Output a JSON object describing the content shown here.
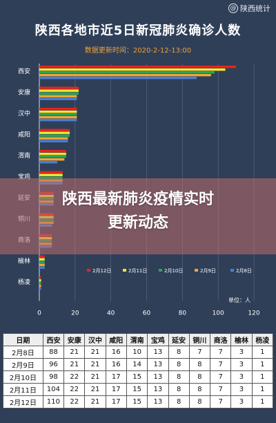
{
  "watermark": {
    "brand": "陕西统计",
    "icon": "weibo-at-icon"
  },
  "header": {
    "title": "陕西各地市近5日新冠肺炎确诊人数",
    "subtitle": "数据更新时间：2020-2-12-13:00"
  },
  "banner": {
    "line1": "陕西最新肺炎疫情实时",
    "line2": "更新动态"
  },
  "chart_data": {
    "type": "bar",
    "orientation": "horizontal",
    "title": "陕西各地市近5日新冠肺炎确诊人数",
    "unit_label": "单位：人",
    "xlim": [
      0,
      120
    ],
    "x_ticks": [
      0,
      20,
      40,
      60,
      80,
      100,
      120
    ],
    "categories": [
      "西安",
      "安康",
      "汉中",
      "咸阳",
      "渭南",
      "宝鸡",
      "延安",
      "铜川",
      "商洛",
      "榆林",
      "杨凌"
    ],
    "series": [
      {
        "name": "2月12日",
        "color": "#e8231f",
        "values": [
          110,
          22,
          21,
          17,
          15,
          13,
          8,
          8,
          7,
          3,
          1
        ]
      },
      {
        "name": "2月11日",
        "color": "#f3e82b",
        "values": [
          104,
          22,
          21,
          17,
          15,
          13,
          8,
          8,
          7,
          3,
          1
        ]
      },
      {
        "name": "2月10日",
        "color": "#2aa55a",
        "values": [
          98,
          22,
          21,
          17,
          15,
          13,
          8,
          8,
          7,
          3,
          1
        ]
      },
      {
        "name": "2月9日",
        "color": "#f2a731",
        "values": [
          96,
          21,
          21,
          16,
          14,
          13,
          8,
          8,
          7,
          3,
          1
        ]
      },
      {
        "name": "2月8日",
        "color": "#4a7fd6",
        "values": [
          88,
          21,
          21,
          16,
          10,
          13,
          8,
          7,
          7,
          3,
          1
        ]
      }
    ],
    "legend_position": "bottom-right",
    "grid": true
  },
  "table": {
    "headers": [
      "日期",
      "西安",
      "安康",
      "汉中",
      "咸阳",
      "渭南",
      "宝鸡",
      "延安",
      "铜川",
      "商洛",
      "榆林",
      "杨凌"
    ],
    "rows": [
      [
        "2月8日",
        "88",
        "21",
        "21",
        "16",
        "10",
        "13",
        "8",
        "7",
        "7",
        "3",
        "1"
      ],
      [
        "2月9日",
        "96",
        "21",
        "21",
        "16",
        "14",
        "13",
        "8",
        "8",
        "7",
        "3",
        "1"
      ],
      [
        "2月10日",
        "98",
        "22",
        "21",
        "17",
        "15",
        "13",
        "8",
        "8",
        "7",
        "3",
        "1"
      ],
      [
        "2月11日",
        "104",
        "22",
        "21",
        "17",
        "15",
        "13",
        "8",
        "8",
        "7",
        "3",
        "1"
      ],
      [
        "2月12日",
        "110",
        "22",
        "21",
        "17",
        "15",
        "13",
        "8",
        "8",
        "7",
        "3",
        "1"
      ]
    ]
  }
}
